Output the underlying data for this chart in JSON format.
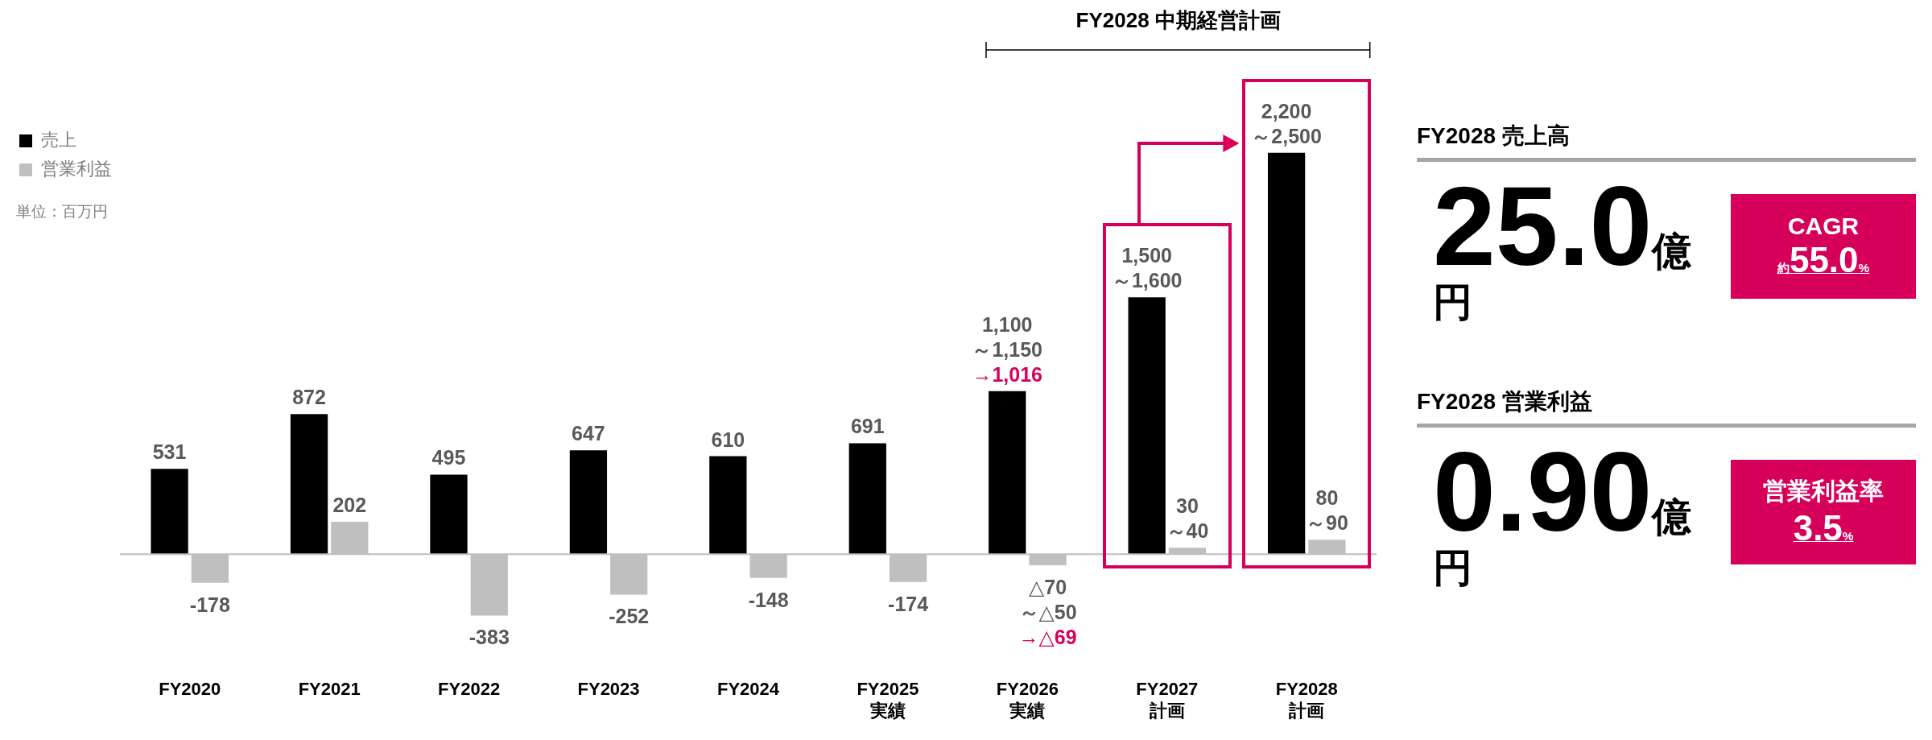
{
  "chart_data": [
    {
      "type": "bar",
      "categories": [
        "FY2020",
        "FY2021",
        "FY2022",
        "FY2023",
        "FY2024",
        "FY2025\n実績",
        "FY2026\n実績",
        "FY2027\n計画",
        "FY2028\n計画"
      ],
      "series": [
        {
          "name": "売上",
          "color": "#000000",
          "values": [
            531,
            872,
            495,
            647,
            610,
            691,
            1016,
            1600,
            2500
          ],
          "value_labels": [
            "531",
            "872",
            "495",
            "647",
            "610",
            "691",
            "1,100\n～1,150\n→1,016",
            "1,500\n～1,600",
            "2,200\n～2,500"
          ]
        },
        {
          "name": "営業利益",
          "color": "#bfbfbf",
          "values": [
            -178,
            202,
            -383,
            -252,
            -148,
            -174,
            -69,
            40,
            90
          ],
          "value_labels": [
            "-178",
            "202",
            "-383",
            "-252",
            "-148",
            "-174",
            "△70\n～△50\n→△69",
            "30\n～40",
            "80\n～90"
          ]
        }
      ],
      "legend": "top left",
      "annotations": [
        "単位：百万円",
        "FY2028 中期経営計画"
      ]
    },
    {
      "type": "other",
      "annotations": [
        "FY2028 売上高",
        "25.0億円",
        "CAGR",
        "約55.0%",
        "FY2028 営業利益",
        "0.90億円",
        "営業利益率",
        "3.5%"
      ]
    }
  ]
}
